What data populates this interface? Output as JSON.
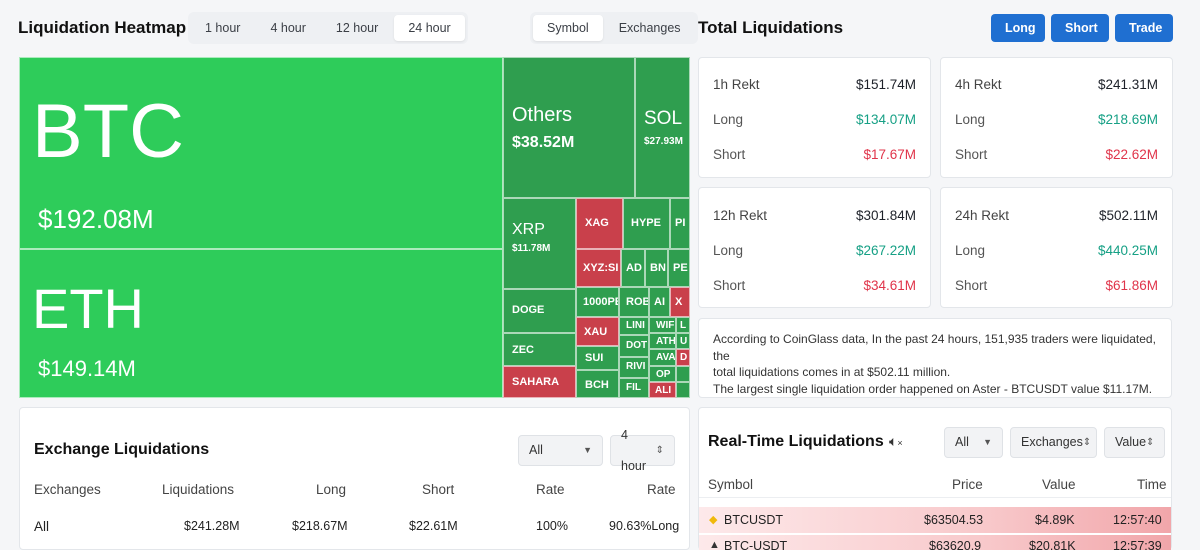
{
  "header": {
    "title": "Liquidation Heatmap",
    "time_tabs": [
      "1 hour",
      "4 hour",
      "12 hour",
      "24 hour"
    ],
    "mode_tabs": [
      "Symbol",
      "Exchanges"
    ]
  },
  "heatmap": {
    "btc": {
      "symbol": "BTC",
      "value": "$192.08M"
    },
    "eth": {
      "symbol": "ETH",
      "value": "$149.14M"
    },
    "others": {
      "symbol": "Others",
      "value": "$38.52M"
    },
    "sol": {
      "symbol": "SOL",
      "value": "$27.93M"
    },
    "xrp": {
      "symbol": "XRP",
      "value": "$11.78M"
    },
    "small": {
      "doge": "DOGE",
      "zec": "ZEC",
      "sahara": "SAHARA",
      "xag": "XAG",
      "hype": "HYPE",
      "pi": "PI",
      "xyzsi": "XYZ:SI",
      "ad": "AD",
      "bn": "BN",
      "pe": "PE",
      "pepe": "1000PE",
      "rob": "ROB",
      "al": "AI",
      "x": "X",
      "xau": "XAU",
      "link": "LINI",
      "wif": "WIF",
      "l": "L",
      "sui": "SUI",
      "dot": "DOT",
      "ath": "ATH",
      "avax": "AVA",
      "u": "U",
      "rivr": "RIVI",
      "op": "OP",
      "d": "D",
      "bch": "BCH",
      "fil": "FIL",
      "ali": "ALI"
    }
  },
  "total": {
    "title": "Total Liquidations",
    "buttons": {
      "long": "Long",
      "short": "Short",
      "trade": "Trade"
    },
    "cards": [
      {
        "label": "1h Rekt",
        "total": "$151.74M",
        "long_label": "Long",
        "long": "$134.07M",
        "short_label": "Short",
        "short": "$17.67M"
      },
      {
        "label": "4h Rekt",
        "total": "$241.31M",
        "long_label": "Long",
        "long": "$218.69M",
        "short_label": "Short",
        "short": "$22.62M"
      },
      {
        "label": "12h Rekt",
        "total": "$301.84M",
        "long_label": "Long",
        "long": "$267.22M",
        "short_label": "Short",
        "short": "$34.61M"
      },
      {
        "label": "24h Rekt",
        "total": "$502.11M",
        "long_label": "Long",
        "long": "$440.25M",
        "short_label": "Short",
        "short": "$61.86M"
      }
    ],
    "info_line1": "According to CoinGlass data, In the past 24 hours, 151,935 traders were liquidated, the",
    "info_line2": "total liquidations comes in at $502.11 million.",
    "info_line3": "The largest single liquidation order happened on Aster - BTCUSDT value $11.17M."
  },
  "exchange": {
    "title": "Exchange Liquidations",
    "filter": "All",
    "period": "4 hour",
    "headers": [
      "Exchanges",
      "Liquidations",
      "Long",
      "Short",
      "Rate",
      "Rate"
    ],
    "row": {
      "exchange": "All",
      "liquidations": "$241.28M",
      "long": "$218.67M",
      "short": "$22.61M",
      "rate": "100%",
      "rate2": "90.63%Long"
    }
  },
  "realtime": {
    "title": "Real-Time Liquidations",
    "filter": "All",
    "exchanges": "Exchanges",
    "value": "Value",
    "headers": {
      "symbol": "Symbol",
      "price": "Price",
      "value": "Value",
      "time": "Time"
    },
    "rows": [
      {
        "symbol": "BTCUSDT",
        "price": "$63504.53",
        "value": "$4.89K",
        "time": "12:57:40"
      },
      {
        "symbol": "BTC-USDT",
        "price": "$63620.9",
        "value": "$20.81K",
        "time": "12:57:39"
      }
    ]
  },
  "colors": {
    "accent": "#1f6fd1",
    "long": "#16a085",
    "short": "#e0344a",
    "heat_green": "#2ecc5a",
    "heat_dark": "#2f9e4f",
    "heat_red": "#c9404b"
  }
}
